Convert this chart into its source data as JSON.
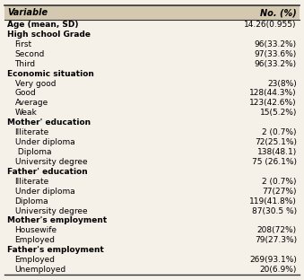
{
  "headers": [
    "Variable",
    "No. (%)"
  ],
  "rows": [
    {
      "label": "Age (mean, SD)",
      "value": "14.26(0.955)",
      "bold": true,
      "indent": 0
    },
    {
      "label": "High school Grade",
      "value": "",
      "bold": true,
      "indent": 0
    },
    {
      "label": "First",
      "value": "96(33.2%)",
      "bold": false,
      "indent": 1
    },
    {
      "label": "Second",
      "value": "97(33.6%)",
      "bold": false,
      "indent": 1
    },
    {
      "label": "Third",
      "value": "96(33.2%)",
      "bold": false,
      "indent": 1
    },
    {
      "label": "Economic situation",
      "value": "",
      "bold": true,
      "indent": 0
    },
    {
      "label": "Very good",
      "value": "23(8%)",
      "bold": false,
      "indent": 1
    },
    {
      "label": "Good",
      "value": "128(44.3%)",
      "bold": false,
      "indent": 1
    },
    {
      "label": "Average",
      "value": "123(42.6%)",
      "bold": false,
      "indent": 1
    },
    {
      "label": "Weak",
      "value": "15(5.2%)",
      "bold": false,
      "indent": 1
    },
    {
      "label": "Mother' education",
      "value": "",
      "bold": true,
      "indent": 0
    },
    {
      "label": "Illiterate",
      "value": "2 (0.7%)",
      "bold": false,
      "indent": 1
    },
    {
      "label": "Under diploma",
      "value": "72(25.1%)",
      "bold": false,
      "indent": 1
    },
    {
      "label": " Diploma",
      "value": "138(48.1)",
      "bold": false,
      "indent": 1
    },
    {
      "label": "University degree",
      "value": "75 (26.1%)",
      "bold": false,
      "indent": 1
    },
    {
      "label": "Father' education",
      "value": "",
      "bold": true,
      "indent": 0
    },
    {
      "label": "Illiterate",
      "value": "2 (0.7%)",
      "bold": false,
      "indent": 1
    },
    {
      "label": "Under diploma",
      "value": "77(27%)",
      "bold": false,
      "indent": 1
    },
    {
      "label": "Diploma",
      "value": "119(41.8%)",
      "bold": false,
      "indent": 1
    },
    {
      "label": "University degree",
      "value": "87(30.5 %)",
      "bold": false,
      "indent": 1
    },
    {
      "label": "Mother's employment",
      "value": "",
      "bold": true,
      "indent": 0
    },
    {
      "label": "Housewife",
      "value": "208(72%)",
      "bold": false,
      "indent": 1
    },
    {
      "label": "Employed",
      "value": "79(27.3%)",
      "bold": false,
      "indent": 1
    },
    {
      "label": "Father's employment",
      "value": "",
      "bold": true,
      "indent": 0
    },
    {
      "label": "Employed",
      "value": "269(93.1%)",
      "bold": false,
      "indent": 1
    },
    {
      "label": "Unemployed",
      "value": "20(6.9%)",
      "bold": false,
      "indent": 1
    }
  ],
  "fig_width": 3.39,
  "fig_height": 3.12,
  "dpi": 100,
  "font_size": 6.5,
  "header_font_size": 7.0,
  "bg_color": "#f5f0e8",
  "header_bg": "#d4c9b0",
  "line_color": "#333333"
}
